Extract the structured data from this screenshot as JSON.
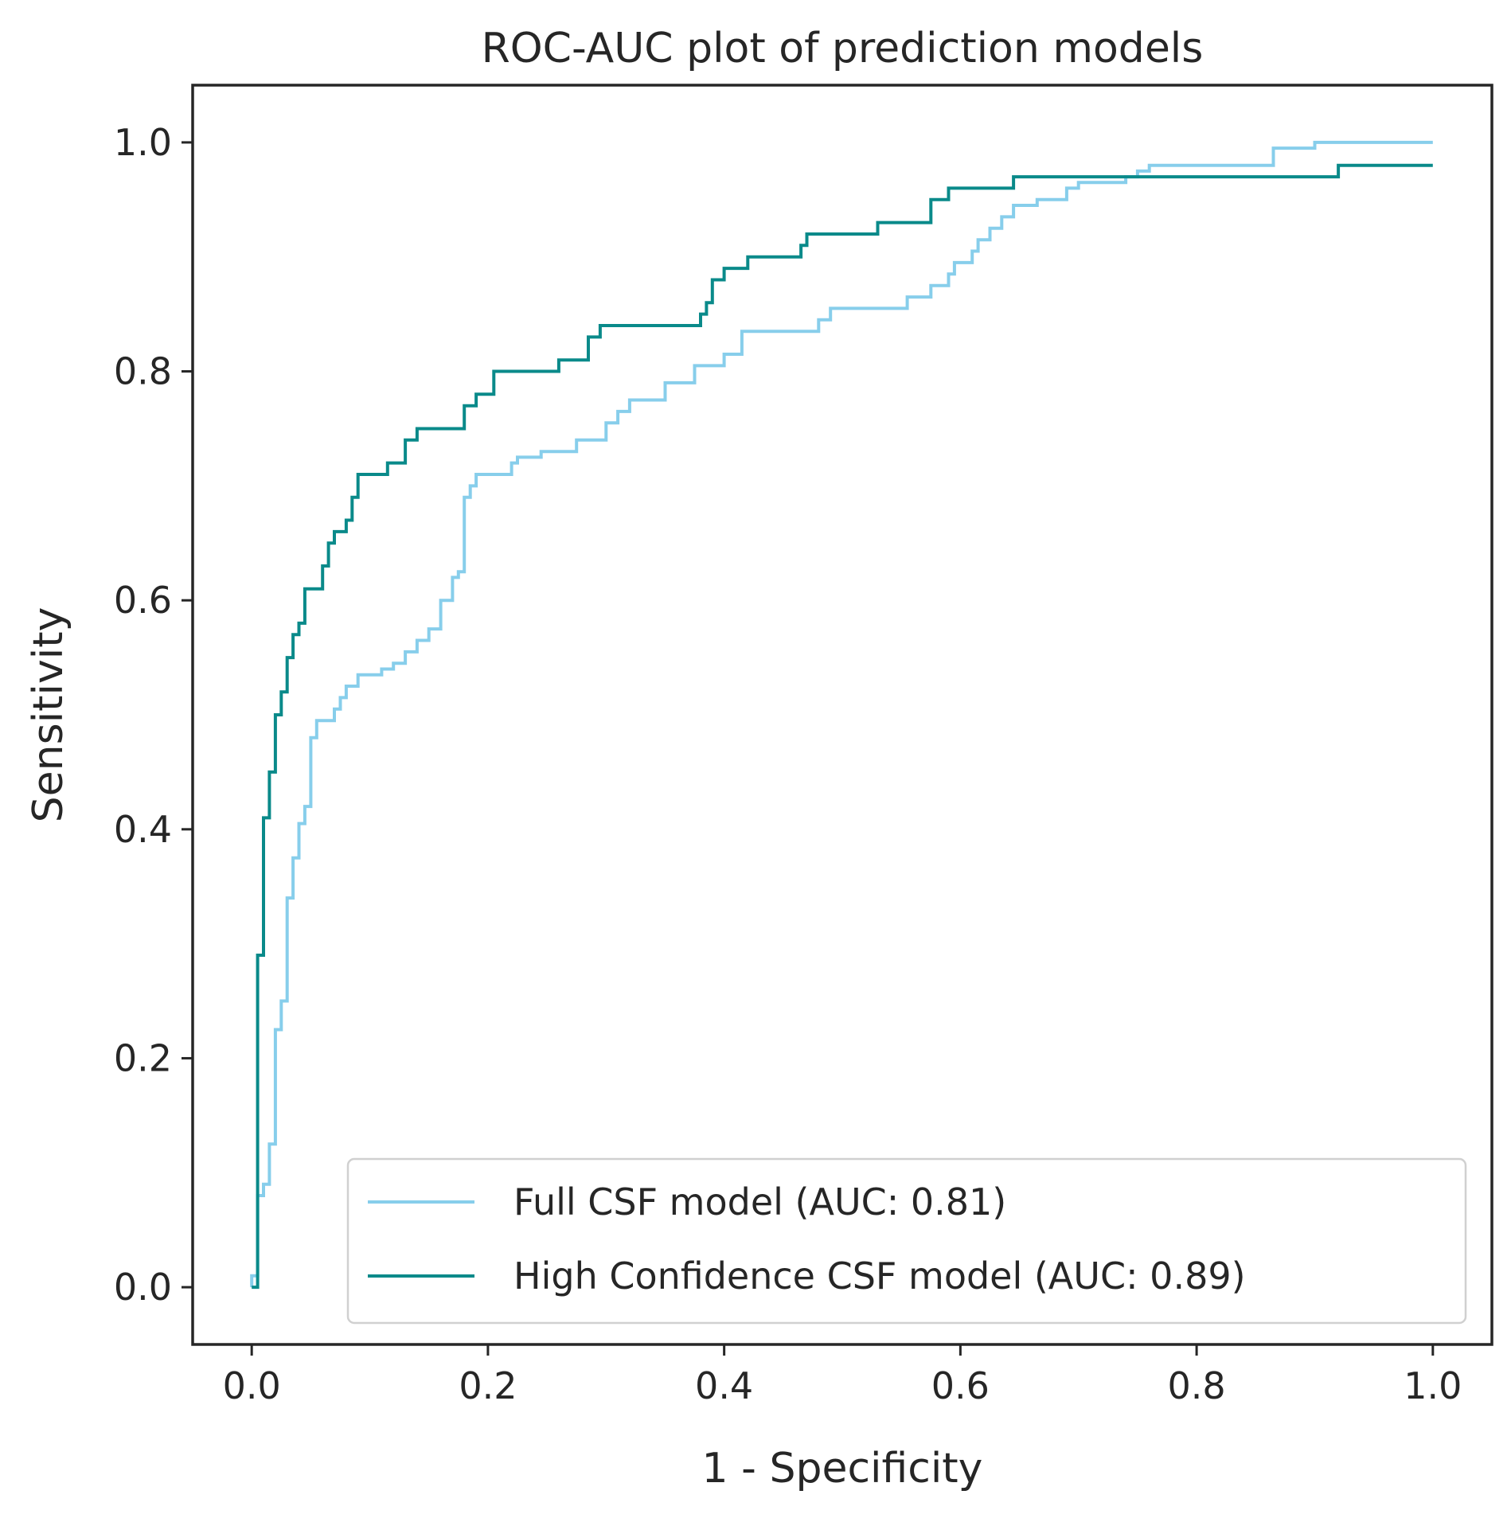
{
  "chart_data": {
    "type": "line",
    "title": "ROC-AUC plot of prediction models",
    "xlabel": "1 - Specificity",
    "ylabel": "Sensitivity",
    "xlim": [
      -0.05,
      1.05
    ],
    "ylim": [
      -0.05,
      1.05
    ],
    "xticks": [
      "0.0",
      "0.2",
      "0.4",
      "0.6",
      "0.8",
      "1.0"
    ],
    "yticks": [
      "0.0",
      "0.2",
      "0.4",
      "0.6",
      "0.8",
      "1.0"
    ],
    "grid": false,
    "legend_position": "lower-right",
    "series": [
      {
        "name": "Full CSF model (AUC: 0.81)",
        "color": "#87ceeb",
        "x": [
          0,
          0,
          0.005,
          0.005,
          0.01,
          0.01,
          0.015,
          0.015,
          0.02,
          0.02,
          0.025,
          0.025,
          0.03,
          0.03,
          0.035,
          0.035,
          0.04,
          0.04,
          0.045,
          0.045,
          0.05,
          0.05,
          0.055,
          0.055,
          0.07,
          0.07,
          0.075,
          0.075,
          0.08,
          0.08,
          0.09,
          0.09,
          0.11,
          0.11,
          0.12,
          0.12,
          0.13,
          0.13,
          0.14,
          0.14,
          0.15,
          0.15,
          0.16,
          0.16,
          0.17,
          0.17,
          0.175,
          0.175,
          0.18,
          0.18,
          0.185,
          0.185,
          0.19,
          0.19,
          0.22,
          0.22,
          0.225,
          0.225,
          0.245,
          0.245,
          0.275,
          0.275,
          0.3,
          0.3,
          0.31,
          0.31,
          0.32,
          0.32,
          0.35,
          0.35,
          0.375,
          0.375,
          0.4,
          0.4,
          0.415,
          0.415,
          0.48,
          0.48,
          0.49,
          0.49,
          0.555,
          0.555,
          0.575,
          0.575,
          0.59,
          0.59,
          0.595,
          0.595,
          0.61,
          0.61,
          0.615,
          0.615,
          0.625,
          0.625,
          0.635,
          0.635,
          0.645,
          0.645,
          0.665,
          0.665,
          0.69,
          0.69,
          0.7,
          0.7,
          0.74,
          0.74,
          0.75,
          0.75,
          0.76,
          0.76,
          0.865,
          0.865,
          0.9,
          0.9,
          1.0
        ],
        "y": [
          0,
          0.01,
          0.01,
          0.08,
          0.08,
          0.09,
          0.09,
          0.125,
          0.125,
          0.225,
          0.225,
          0.25,
          0.25,
          0.34,
          0.34,
          0.375,
          0.375,
          0.405,
          0.405,
          0.42,
          0.42,
          0.48,
          0.48,
          0.495,
          0.495,
          0.505,
          0.505,
          0.515,
          0.515,
          0.525,
          0.525,
          0.535,
          0.535,
          0.54,
          0.54,
          0.545,
          0.545,
          0.555,
          0.555,
          0.565,
          0.565,
          0.575,
          0.575,
          0.6,
          0.6,
          0.62,
          0.62,
          0.625,
          0.625,
          0.69,
          0.69,
          0.7,
          0.7,
          0.71,
          0.71,
          0.72,
          0.72,
          0.725,
          0.725,
          0.73,
          0.73,
          0.74,
          0.74,
          0.755,
          0.755,
          0.765,
          0.765,
          0.775,
          0.775,
          0.79,
          0.79,
          0.805,
          0.805,
          0.815,
          0.815,
          0.835,
          0.835,
          0.845,
          0.845,
          0.855,
          0.855,
          0.865,
          0.865,
          0.875,
          0.875,
          0.885,
          0.885,
          0.895,
          0.895,
          0.905,
          0.905,
          0.915,
          0.915,
          0.925,
          0.925,
          0.935,
          0.935,
          0.945,
          0.945,
          0.95,
          0.95,
          0.96,
          0.96,
          0.965,
          0.965,
          0.97,
          0.97,
          0.975,
          0.975,
          0.98,
          0.98,
          0.995,
          0.995,
          1.0,
          1.0
        ]
      },
      {
        "name": "High Confidence CSF model (AUC: 0.89)",
        "color": "#0a8a8a",
        "x": [
          0,
          0.005,
          0.005,
          0.01,
          0.01,
          0.015,
          0.015,
          0.02,
          0.02,
          0.025,
          0.025,
          0.03,
          0.03,
          0.035,
          0.035,
          0.04,
          0.04,
          0.045,
          0.045,
          0.06,
          0.06,
          0.065,
          0.065,
          0.07,
          0.07,
          0.08,
          0.08,
          0.085,
          0.085,
          0.09,
          0.09,
          0.115,
          0.115,
          0.13,
          0.13,
          0.14,
          0.14,
          0.18,
          0.18,
          0.19,
          0.19,
          0.205,
          0.205,
          0.26,
          0.26,
          0.285,
          0.285,
          0.295,
          0.295,
          0.38,
          0.38,
          0.385,
          0.385,
          0.39,
          0.39,
          0.4,
          0.4,
          0.42,
          0.42,
          0.465,
          0.465,
          0.47,
          0.47,
          0.53,
          0.53,
          0.575,
          0.575,
          0.59,
          0.59,
          0.645,
          0.645,
          0.92,
          0.92,
          1.0
        ],
        "y": [
          0,
          0,
          0.29,
          0.29,
          0.41,
          0.41,
          0.45,
          0.45,
          0.5,
          0.5,
          0.52,
          0.52,
          0.55,
          0.55,
          0.57,
          0.57,
          0.58,
          0.58,
          0.61,
          0.61,
          0.63,
          0.63,
          0.65,
          0.65,
          0.66,
          0.66,
          0.67,
          0.67,
          0.69,
          0.69,
          0.71,
          0.71,
          0.72,
          0.72,
          0.74,
          0.74,
          0.75,
          0.75,
          0.77,
          0.77,
          0.78,
          0.78,
          0.8,
          0.8,
          0.81,
          0.81,
          0.83,
          0.83,
          0.84,
          0.84,
          0.85,
          0.85,
          0.86,
          0.86,
          0.88,
          0.88,
          0.89,
          0.89,
          0.9,
          0.9,
          0.91,
          0.91,
          0.92,
          0.92,
          0.93,
          0.93,
          0.95,
          0.95,
          0.96,
          0.96,
          0.97,
          0.97,
          0.98,
          0.98
        ]
      }
    ]
  }
}
